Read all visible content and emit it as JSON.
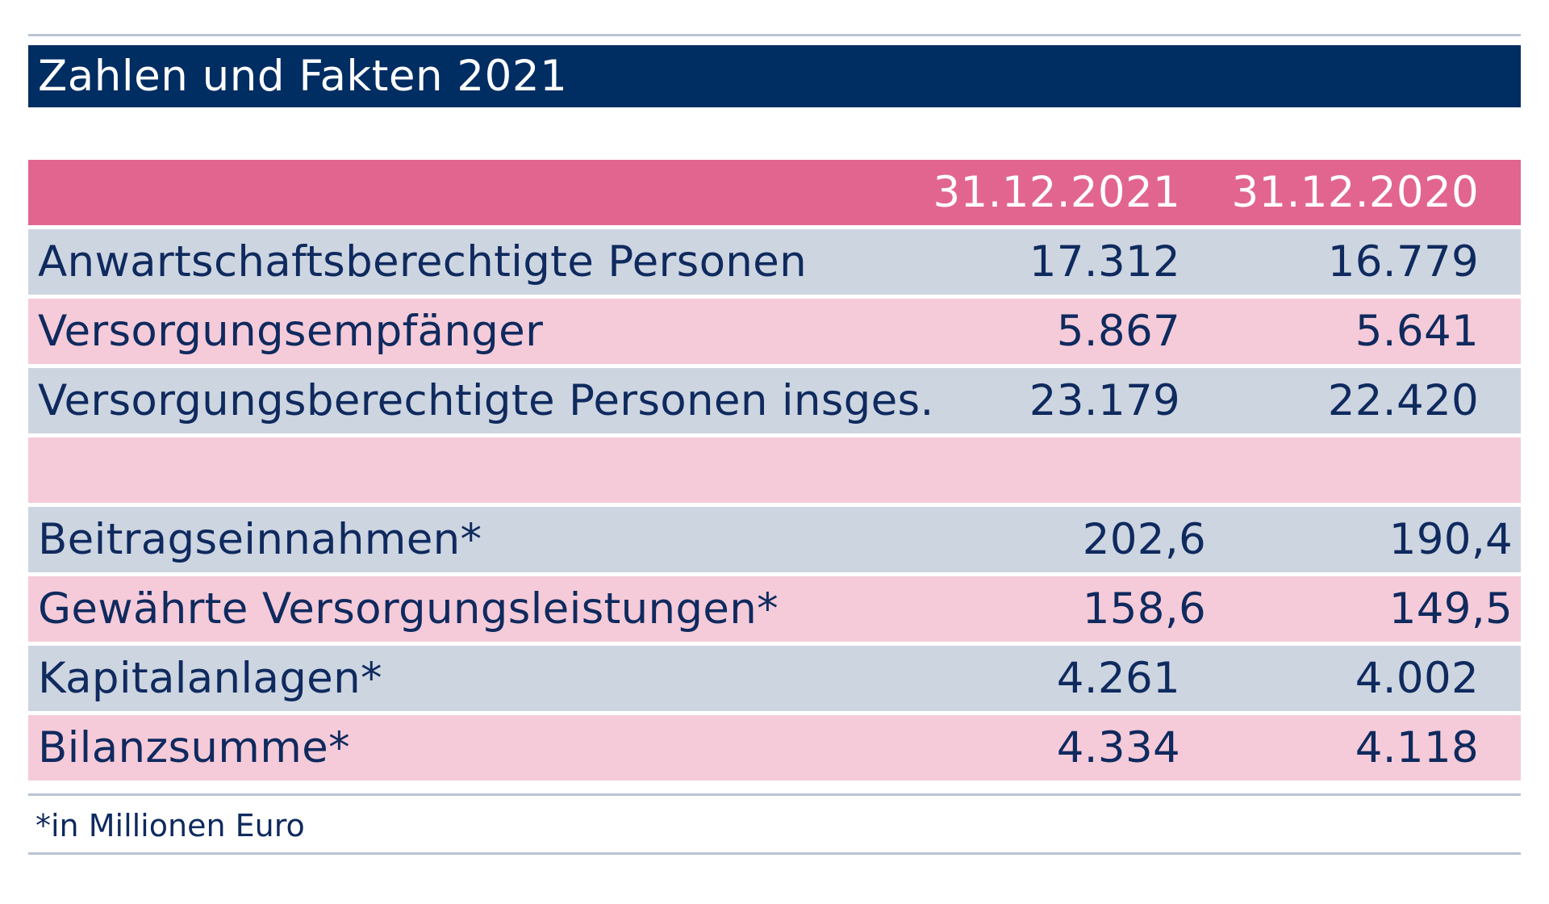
{
  "title": "Zahlen und Fakten 2021",
  "table": {
    "headers": [
      "",
      "31.12.2021",
      "31.12.2020"
    ],
    "rows": [
      {
        "label": "Anwartschaftsberechtigte Personen",
        "v2021": "17.312",
        "v2020": "16.779"
      },
      {
        "label": "Versorgungsempfänger",
        "v2021": "5.867",
        "v2020": "5.641"
      },
      {
        "label": "Versorgungsberechtigte Personen insges.",
        "v2021": "23.179",
        "v2020": "22.420"
      },
      {
        "label": "",
        "v2021": "",
        "v2020": ""
      },
      {
        "label": "Beitragseinnahmen*",
        "v2021": "202,6",
        "v2020": "190,4"
      },
      {
        "label": "Gewährte Versorgungsleistungen*",
        "v2021": "158,6",
        "v2020": "149,5"
      },
      {
        "label": "Kapitalanlagen*",
        "v2021": "4.261",
        "v2020": "4.002"
      },
      {
        "label": "Bilanzsumme*",
        "v2021": "4.334",
        "v2020": "4.118"
      }
    ]
  },
  "footnote": "*in Millionen Euro",
  "colors": {
    "title_bg": "#002d62",
    "header_bg": "#e26590",
    "row_blue": "#cdd5e1",
    "row_pink": "#f5cbd9",
    "text": "#0f2a5e"
  }
}
